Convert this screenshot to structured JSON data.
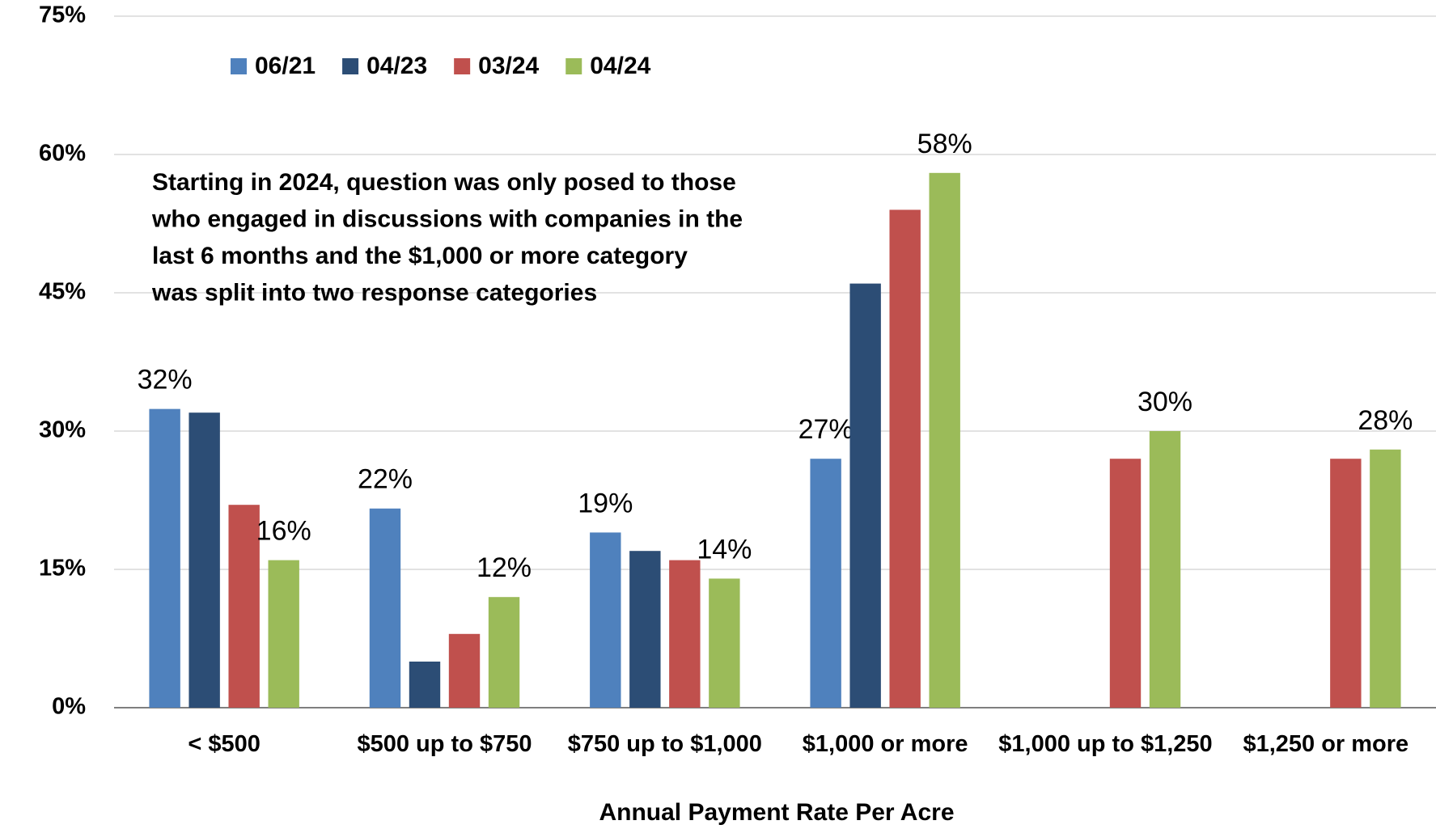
{
  "chart_data": {
    "type": "bar",
    "x_label": "Annual Payment Rate Per Acre",
    "annotation": [
      "Starting in 2024, question was only posed to those",
      "who engaged in discussions with companies in the",
      "last 6 months and the $1,000 or more category",
      "was split into two response categories"
    ],
    "categories": [
      "< $500",
      "$500 up to $750",
      "$750 up to $1,000",
      "$1,000 or more",
      "$1,000 up to $1,250",
      "$1,250 or more"
    ],
    "series": [
      {
        "name": "06/21",
        "color": "#4f81bd",
        "values": [
          32.4,
          21.6,
          19,
          27,
          null,
          null
        ],
        "value_labels": [
          "32%",
          "22%",
          "19%",
          "27%",
          null,
          null
        ]
      },
      {
        "name": "04/23",
        "color": "#2c4d75",
        "values": [
          32,
          5,
          17,
          46,
          null,
          null
        ]
      },
      {
        "name": "03/24",
        "color": "#c0504d",
        "values": [
          22,
          8,
          16,
          54,
          27,
          27
        ]
      },
      {
        "name": "04/24",
        "color": "#9bbb59",
        "values": [
          16,
          12,
          14,
          58,
          30,
          28
        ],
        "value_labels": [
          "16%",
          "12%",
          "14%",
          "58%",
          "30%",
          "28%"
        ]
      }
    ],
    "ylim": [
      0,
      75
    ],
    "yticks": [
      {
        "value": 0,
        "label": "0%"
      },
      {
        "value": 15,
        "label": "15%"
      },
      {
        "value": 30,
        "label": "30%"
      },
      {
        "value": 45,
        "label": "45%"
      },
      {
        "value": 60,
        "label": "60%"
      },
      {
        "value": 75,
        "label": "75%"
      }
    ],
    "grid": true
  }
}
